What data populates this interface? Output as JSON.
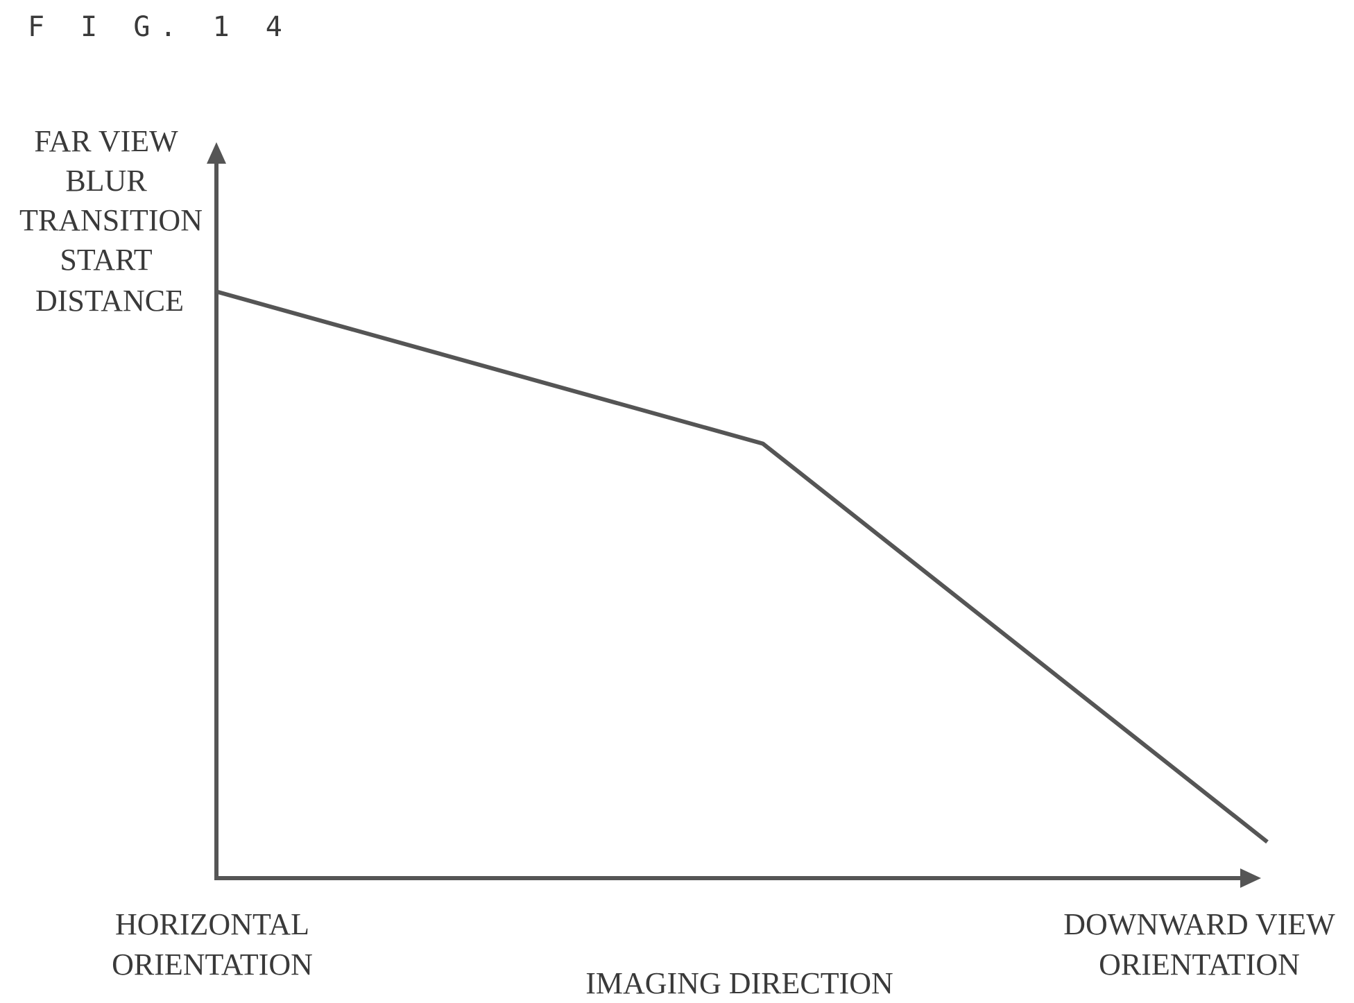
{
  "figure_label": "F I G. 1 4",
  "chart_data": {
    "type": "line",
    "ylabel_lines": [
      "FAR VIEW",
      "BLUR",
      "TRANSITION",
      "START",
      "DISTANCE"
    ],
    "xlabel": "IMAGING DIRECTION",
    "x_tick_labels": {
      "start": [
        "HORIZONTAL",
        "ORIENTATION"
      ],
      "end": [
        "DOWNWARD VIEW",
        "ORIENTATION"
      ]
    },
    "x_axis_range": [
      0,
      1
    ],
    "y_axis_range": [
      0,
      1
    ],
    "series": [
      {
        "x": [
          0,
          0.52,
          1
        ],
        "y": [
          0.81,
          0.6,
          0.05
        ]
      }
    ],
    "grid": false,
    "legend": "none",
    "line_color": "#555555"
  }
}
